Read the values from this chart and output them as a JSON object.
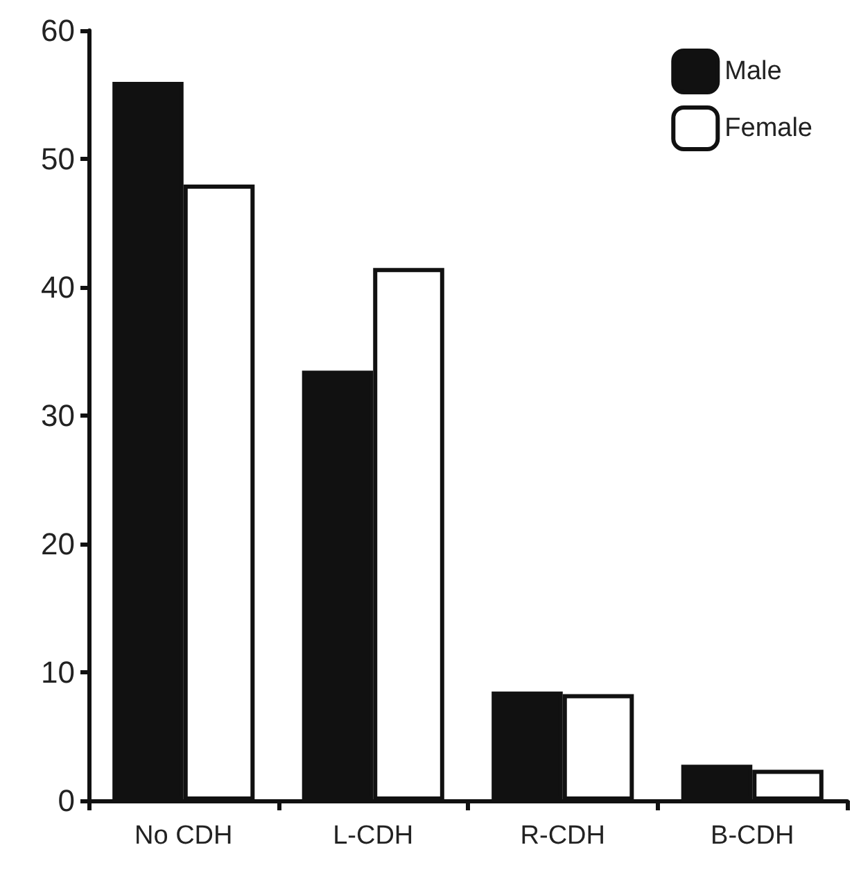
{
  "chart_data": {
    "type": "bar",
    "categories": [
      "No CDH",
      "L-CDH",
      "R-CDH",
      "B-CDH"
    ],
    "series": [
      {
        "name": "Male",
        "color": "#111111",
        "values": [
          56,
          33.5,
          8.5,
          2.8
        ]
      },
      {
        "name": "Female",
        "color": "#ffffff",
        "values": [
          48,
          41.5,
          8.3,
          2.4
        ]
      }
    ],
    "ylim": [
      0,
      60
    ],
    "yticks": [
      0,
      10,
      20,
      30,
      40,
      50,
      60
    ],
    "grid": false,
    "legend": "top right"
  }
}
